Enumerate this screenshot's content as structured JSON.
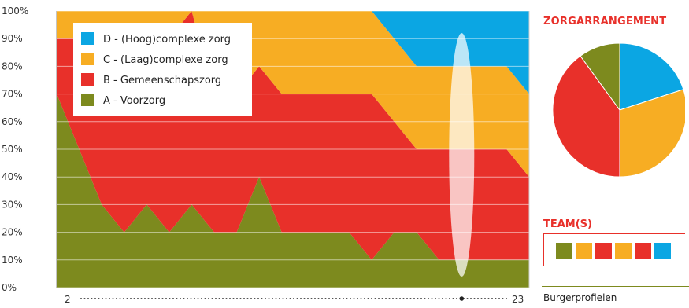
{
  "chart_data": [
    {
      "type": "area",
      "stacked": true,
      "x": [
        2,
        3,
        4,
        5,
        6,
        7,
        8,
        9,
        10,
        11,
        12,
        13,
        14,
        15,
        16,
        17,
        18,
        19,
        20,
        21,
        22,
        23
      ],
      "x_tick_labels": [
        "2",
        "23"
      ],
      "y_tick_labels": [
        "0%",
        "10%",
        "20%",
        "30%",
        "40%",
        "50%",
        "60%",
        "70%",
        "80%",
        "90%",
        "100%"
      ],
      "ylim": [
        0,
        100
      ],
      "grid": true,
      "legend_position": "top-left",
      "selected_x": 20,
      "series": [
        {
          "name": "A - Voorzorg",
          "color": "#7d8a1e",
          "values": [
            70,
            50,
            30,
            20,
            30,
            20,
            30,
            20,
            20,
            40,
            20,
            20,
            20,
            20,
            10,
            20,
            20,
            10,
            10,
            10,
            10,
            10
          ]
        },
        {
          "name": "B - Gemeenschapszorg",
          "color": "#e8302a",
          "values": [
            20,
            40,
            60,
            70,
            60,
            70,
            70,
            50,
            50,
            40,
            50,
            50,
            50,
            50,
            60,
            40,
            30,
            40,
            40,
            40,
            40,
            30
          ]
        },
        {
          "name": "C - (Laag)complexe zorg",
          "color": "#f7ad23",
          "values": [
            10,
            10,
            10,
            10,
            10,
            10,
            0,
            30,
            30,
            20,
            30,
            30,
            30,
            30,
            30,
            30,
            30,
            30,
            30,
            30,
            30,
            30
          ]
        },
        {
          "name": "D - (Hoog)complexe zorg",
          "color": "#0ba6e3",
          "values": [
            0,
            0,
            0,
            0,
            0,
            0,
            0,
            0,
            0,
            0,
            0,
            0,
            0,
            0,
            0,
            10,
            20,
            20,
            20,
            20,
            20,
            30
          ]
        }
      ],
      "legend_order": [
        "D - (Hoog)complexe zorg",
        "C - (Laag)complexe zorg",
        "B - Gemeenschapszorg",
        "A - Voorzorg"
      ]
    },
    {
      "type": "pie",
      "title": "ZORGARRANGEMENT",
      "slices": [
        {
          "label": "D - (Hoog)complexe zorg",
          "value": 20,
          "color": "#0ba6e3"
        },
        {
          "label": "C - (Laag)complexe zorg",
          "value": 30,
          "color": "#f7ad23"
        },
        {
          "label": "B - Gemeenschapszorg",
          "value": 40,
          "color": "#e8302a"
        },
        {
          "label": "A - Voorzorg",
          "value": 10,
          "color": "#7d8a1e"
        }
      ]
    }
  ],
  "team": {
    "title": "TEAM(S)",
    "swatches": [
      {
        "color": "#7d8a1e"
      },
      {
        "color": "#f7ad23"
      },
      {
        "color": "#e8302a"
      },
      {
        "color": "#f7ad23"
      },
      {
        "color": "#e8302a"
      },
      {
        "color": "#0ba6e3"
      }
    ]
  },
  "footer": {
    "label": "Burgerprofielen"
  }
}
